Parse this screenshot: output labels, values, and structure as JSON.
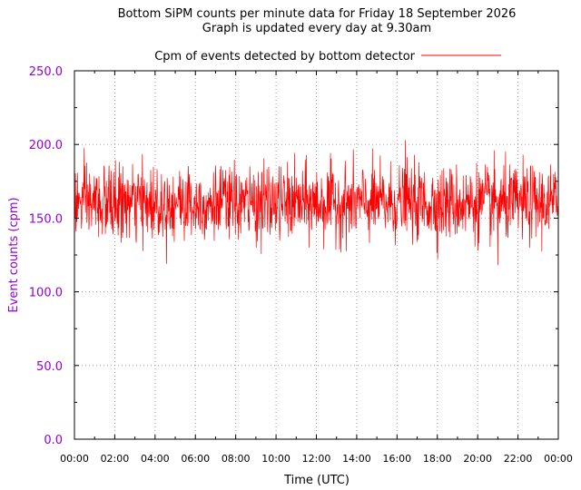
{
  "chart_data": {
    "type": "line",
    "title": "Bottom SiPM counts per minute data for Friday 18 September 2026",
    "subtitle": "Graph is updated every day at 9.30am",
    "xlabel": "Time (UTC)",
    "ylabel": "Event counts (cpm)",
    "xlim": [
      "00:00",
      "24:00"
    ],
    "ylim": [
      0,
      250
    ],
    "grid": true,
    "legend_position": "top",
    "x_ticks": [
      "00:00",
      "02:00",
      "04:00",
      "06:00",
      "08:00",
      "10:00",
      "12:00",
      "14:00",
      "16:00",
      "18:00",
      "20:00",
      "22:00",
      "00:00"
    ],
    "y_ticks": [
      "0.0",
      "50.0",
      "100.0",
      "150.0",
      "200.0",
      "250.0"
    ],
    "series": [
      {
        "name": "Cpm of events detected by bottom detector",
        "color": "#ff0000",
        "x_unit": "hours UTC",
        "sample_interval_minutes": 1,
        "typical_mean_cpm": 160,
        "min_cpm": 118,
        "max_cpm": 203
      }
    ]
  },
  "colors": {
    "series_line": "#ff0000",
    "y_tick_labels": "#9400d3",
    "grid": "#a0a0a0",
    "axes": "#000000"
  }
}
